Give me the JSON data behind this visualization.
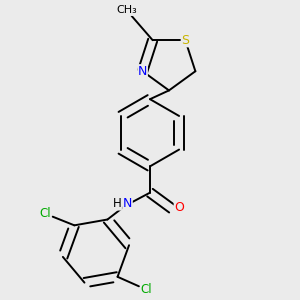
{
  "background_color": "#ebebeb",
  "atom_colors": {
    "S": "#c8b400",
    "N": "#0000ff",
    "O": "#ff0000",
    "Cl": "#00aa00",
    "C": "#000000"
  },
  "font_size": 8.5,
  "bond_width": 1.4,
  "figsize": [
    3.0,
    3.0
  ],
  "dpi": 100
}
